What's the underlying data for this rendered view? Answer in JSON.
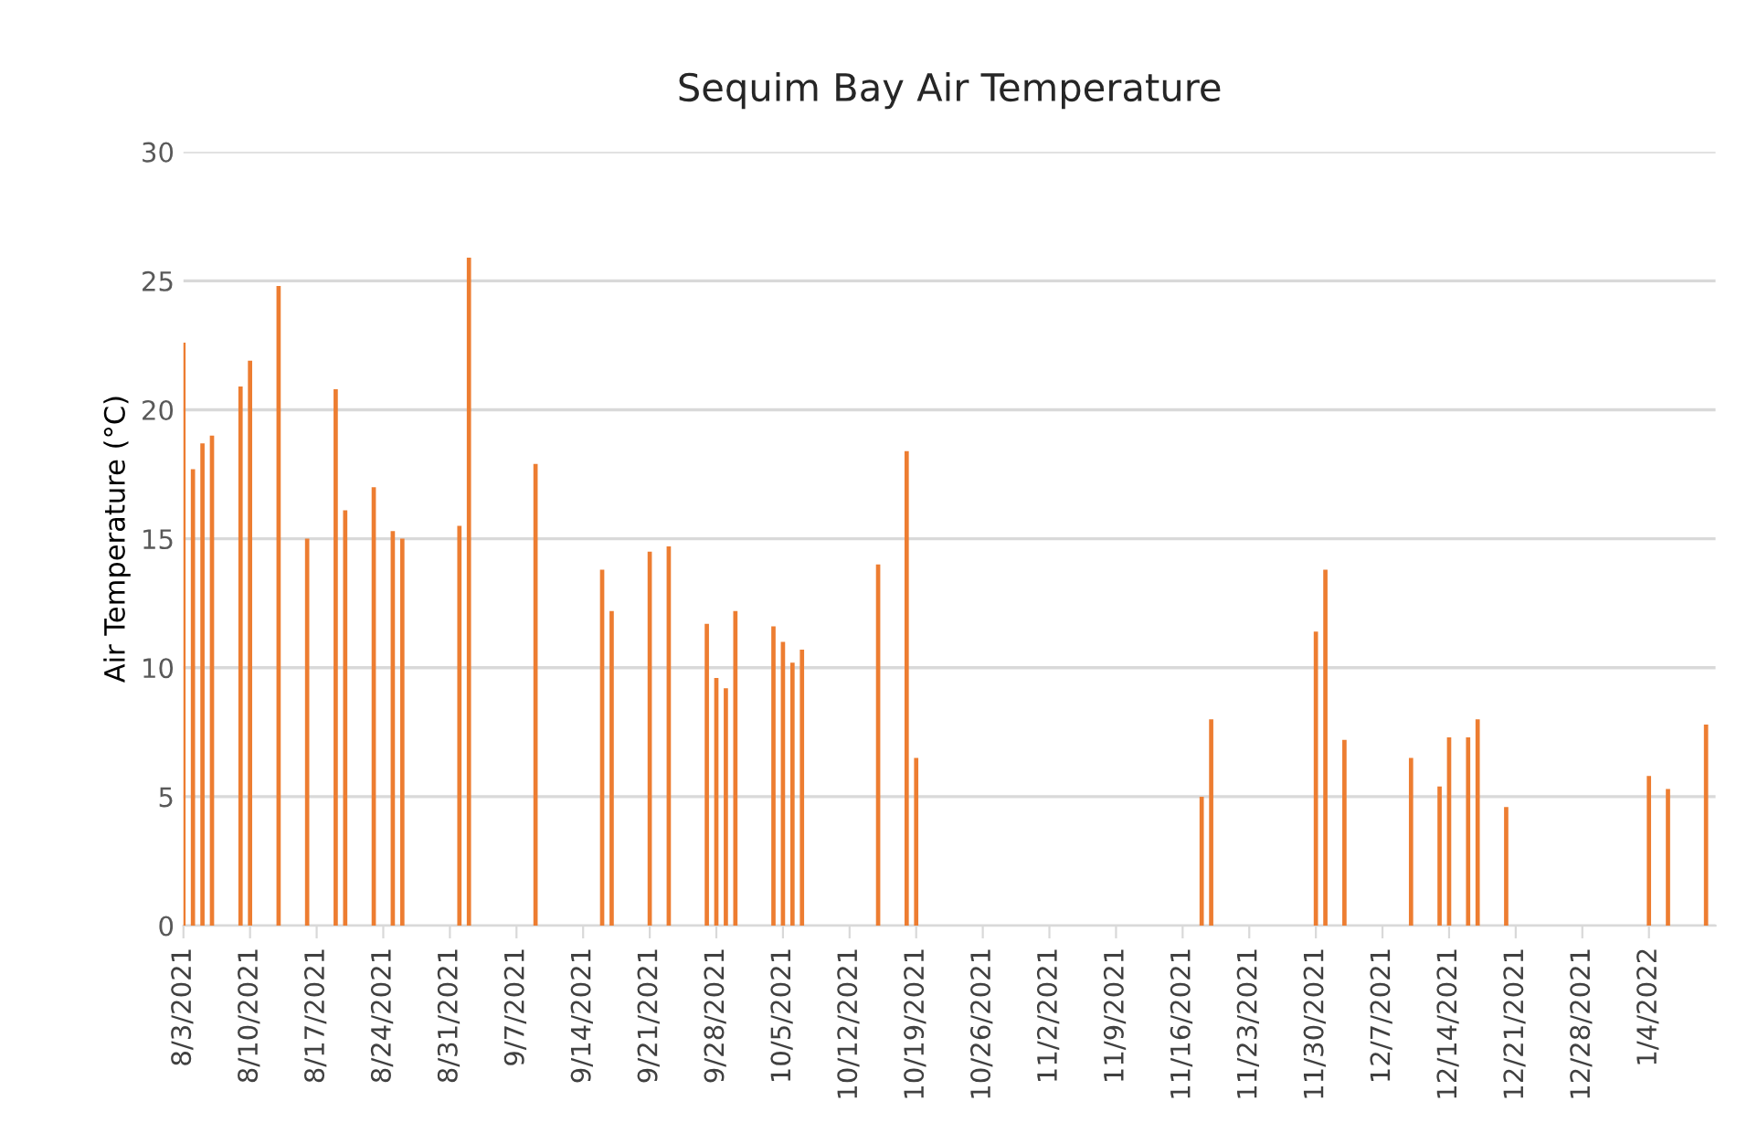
{
  "chart_data": {
    "type": "bar",
    "title": "Sequim Bay Air Temperature",
    "ylabel": "Air Temperature (°C)",
    "x": [
      "2021-08-03",
      "2021-08-04",
      "2021-08-05",
      "2021-08-06",
      "2021-08-09",
      "2021-08-10",
      "2021-08-13",
      "2021-08-16",
      "2021-08-19",
      "2021-08-20",
      "2021-08-23",
      "2021-08-25",
      "2021-08-26",
      "2021-09-01",
      "2021-09-02",
      "2021-09-09",
      "2021-09-16",
      "2021-09-17",
      "2021-09-21",
      "2021-09-23",
      "2021-09-27",
      "2021-09-28",
      "2021-09-29",
      "2021-09-30",
      "2021-10-04",
      "2021-10-05",
      "2021-10-06",
      "2021-10-07",
      "2021-10-15",
      "2021-10-18",
      "2021-10-19",
      "2021-11-18",
      "2021-11-19",
      "2021-11-30",
      "2021-12-01",
      "2021-12-03",
      "2021-12-10",
      "2021-12-13",
      "2021-12-14",
      "2021-12-16",
      "2021-12-17",
      "2021-12-20",
      "2022-01-04",
      "2022-01-06",
      "2022-01-10"
    ],
    "values": [
      22.6,
      17.7,
      18.7,
      19.0,
      20.9,
      21.9,
      24.8,
      15.0,
      20.8,
      16.1,
      17.0,
      15.3,
      15.0,
      15.5,
      25.9,
      17.9,
      13.8,
      12.2,
      14.5,
      14.7,
      11.7,
      9.6,
      9.2,
      12.2,
      11.6,
      11.0,
      10.2,
      10.7,
      14.0,
      18.4,
      6.5,
      5.0,
      8.0,
      11.4,
      13.8,
      7.2,
      6.5,
      5.4,
      7.3,
      7.3,
      8.0,
      4.6,
      5.8,
      5.3,
      7.8
    ],
    "color": "#ed7d31",
    "xlim": [
      "2021-08-03",
      "2022-01-11"
    ],
    "xticks": [
      {
        "value": "2021-08-03",
        "label": "8/3/2021"
      },
      {
        "value": "2021-08-10",
        "label": "8/10/2021"
      },
      {
        "value": "2021-08-17",
        "label": "8/17/2021"
      },
      {
        "value": "2021-08-24",
        "label": "8/24/2021"
      },
      {
        "value": "2021-08-31",
        "label": "8/31/2021"
      },
      {
        "value": "2021-09-07",
        "label": "9/7/2021"
      },
      {
        "value": "2021-09-14",
        "label": "9/14/2021"
      },
      {
        "value": "2021-09-21",
        "label": "9/21/2021"
      },
      {
        "value": "2021-09-28",
        "label": "9/28/2021"
      },
      {
        "value": "2021-10-05",
        "label": "10/5/2021"
      },
      {
        "value": "2021-10-12",
        "label": "10/12/2021"
      },
      {
        "value": "2021-10-19",
        "label": "10/19/2021"
      },
      {
        "value": "2021-10-26",
        "label": "10/26/2021"
      },
      {
        "value": "2021-11-02",
        "label": "11/2/2021"
      },
      {
        "value": "2021-11-09",
        "label": "11/9/2021"
      },
      {
        "value": "2021-11-16",
        "label": "11/16/2021"
      },
      {
        "value": "2021-11-23",
        "label": "11/23/2021"
      },
      {
        "value": "2021-11-30",
        "label": "11/30/2021"
      },
      {
        "value": "2021-12-07",
        "label": "12/7/2021"
      },
      {
        "value": "2021-12-14",
        "label": "12/14/2021"
      },
      {
        "value": "2021-12-21",
        "label": "12/21/2021"
      },
      {
        "value": "2021-12-28",
        "label": "12/28/2021"
      },
      {
        "value": "2022-01-04",
        "label": "1/4/2022"
      }
    ],
    "ylim": [
      0,
      30
    ],
    "yticks": [
      0,
      5,
      10,
      15,
      20,
      25,
      30
    ],
    "grid": "y"
  }
}
